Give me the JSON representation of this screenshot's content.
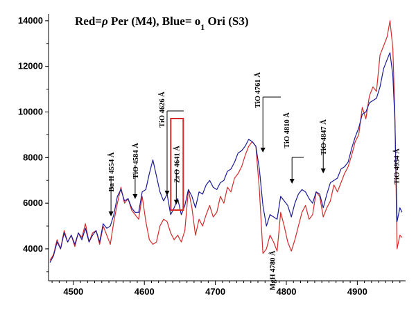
{
  "chart_data": {
    "type": "line",
    "title": {
      "part1": "Red=",
      "rho": "ρ",
      "part2": " Per (M4),  Blue= o",
      "sub": "1",
      "part3": " Ori (S3)"
    },
    "xlabel": "",
    "ylabel": "",
    "xlim": [
      4465,
      4968
    ],
    "ylim": [
      2600,
      14300
    ],
    "x_ticks": [
      4500,
      4600,
      4700,
      4800,
      4900
    ],
    "y_ticks": [
      4000,
      6000,
      8000,
      10000,
      12000,
      14000
    ],
    "grid": false,
    "colors": {
      "red": "#d42a2a",
      "blue": "#1a1a96",
      "box": "#d42a2a"
    },
    "series": [
      {
        "color": "red",
        "x": [
          4467,
          4472,
          4477,
          4482,
          4487,
          4492,
          4497,
          4502,
          4507,
          4512,
          4517,
          4522,
          4527,
          4532,
          4537,
          4542,
          4547,
          4552,
          4557,
          4562,
          4567,
          4572,
          4577,
          4582,
          4587,
          4592,
          4597,
          4602,
          4607,
          4612,
          4617,
          4622,
          4627,
          4632,
          4637,
          4642,
          4647,
          4652,
          4657,
          4662,
          4667,
          4672,
          4677,
          4682,
          4687,
          4692,
          4697,
          4702,
          4707,
          4712,
          4717,
          4722,
          4727,
          4732,
          4737,
          4742,
          4747,
          4752,
          4757,
          4762,
          4767,
          4772,
          4777,
          4782,
          4787,
          4792,
          4797,
          4802,
          4807,
          4812,
          4817,
          4822,
          4827,
          4832,
          4837,
          4842,
          4847,
          4852,
          4857,
          4862,
          4867,
          4872,
          4877,
          4882,
          4887,
          4892,
          4897,
          4902,
          4907,
          4912,
          4917,
          4922,
          4927,
          4932,
          4937,
          4942,
          4946,
          4950,
          4953,
          4956,
          4960,
          4963
        ],
        "y": [
          3500,
          3750,
          4400,
          4000,
          4800,
          4300,
          4600,
          4100,
          4700,
          4500,
          5100,
          4300,
          4700,
          4800,
          4200,
          5000,
          4600,
          4200,
          5200,
          6000,
          6700,
          6000,
          6200,
          5700,
          5500,
          5300,
          6300,
          5200,
          4400,
          4200,
          4300,
          5000,
          5300,
          5200,
          4700,
          4400,
          4600,
          4300,
          4800,
          6600,
          5800,
          4600,
          5300,
          5000,
          5500,
          5900,
          5400,
          5600,
          6300,
          6000,
          6700,
          6500,
          7100,
          7300,
          7600,
          8100,
          8500,
          8700,
          8500,
          6600,
          3800,
          4000,
          4600,
          4300,
          3900,
          5600,
          5000,
          4300,
          3900,
          4400,
          5000,
          5600,
          5900,
          5300,
          5500,
          6500,
          6300,
          5400,
          5800,
          6100,
          6800,
          6500,
          6900,
          7300,
          7600,
          8100,
          8700,
          9000,
          10200,
          9700,
          10700,
          11100,
          10900,
          12500,
          12900,
          13300,
          14000,
          12800,
          9800,
          4000,
          4600,
          4500
        ]
      },
      {
        "color": "blue",
        "x": [
          4467,
          4472,
          4477,
          4482,
          4487,
          4492,
          4497,
          4502,
          4507,
          4512,
          4517,
          4522,
          4527,
          4532,
          4537,
          4542,
          4547,
          4552,
          4557,
          4562,
          4567,
          4572,
          4577,
          4582,
          4587,
          4592,
          4597,
          4602,
          4607,
          4612,
          4617,
          4622,
          4627,
          4632,
          4637,
          4642,
          4647,
          4652,
          4657,
          4662,
          4667,
          4672,
          4677,
          4682,
          4687,
          4692,
          4697,
          4702,
          4707,
          4712,
          4717,
          4722,
          4727,
          4732,
          4737,
          4742,
          4747,
          4752,
          4757,
          4762,
          4767,
          4772,
          4777,
          4782,
          4787,
          4792,
          4797,
          4802,
          4807,
          4812,
          4817,
          4822,
          4827,
          4832,
          4837,
          4842,
          4847,
          4852,
          4857,
          4862,
          4867,
          4872,
          4877,
          4882,
          4887,
          4892,
          4897,
          4902,
          4907,
          4912,
          4917,
          4922,
          4927,
          4932,
          4937,
          4942,
          4946,
          4950,
          4953,
          4956,
          4960,
          4963
        ],
        "y": [
          3400,
          3700,
          4300,
          4000,
          4700,
          4300,
          4600,
          4200,
          4700,
          4400,
          4900,
          4300,
          4600,
          4800,
          4300,
          5100,
          4900,
          5000,
          5500,
          6300,
          6600,
          6100,
          6200,
          5800,
          5600,
          5600,
          6500,
          6600,
          7300,
          7900,
          7200,
          6500,
          6100,
          6400,
          5500,
          5800,
          6200,
          5500,
          5900,
          6600,
          6300,
          5800,
          6500,
          6400,
          6800,
          7000,
          6700,
          6600,
          6900,
          7000,
          7400,
          7500,
          7800,
          8200,
          8300,
          8500,
          8800,
          8700,
          8500,
          7500,
          5900,
          5000,
          5500,
          5400,
          5300,
          6300,
          6100,
          5900,
          5400,
          6000,
          6400,
          6600,
          6500,
          6200,
          6000,
          6500,
          6400,
          5800,
          6400,
          6900,
          7000,
          7100,
          7500,
          7600,
          7800,
          8400,
          8900,
          9300,
          9900,
          10000,
          10400,
          10500,
          10600,
          11100,
          11900,
          12300,
          12600,
          11600,
          9600,
          5200,
          5800,
          5600
        ]
      }
    ],
    "annotations": [
      {
        "label": "Ba II 4554 Å",
        "x": 4553
      },
      {
        "label": "TiO 4584 Å",
        "x": 4587
      },
      {
        "label": "TiO 4626 Å",
        "x": 4632
      },
      {
        "label": "ZrO 4641 Å",
        "x": 4645
      },
      {
        "label": "TiO 4761 Å",
        "x": 4767
      },
      {
        "label": "MgH 4780 Å",
        "x": 4780
      },
      {
        "label": "TiO 4810 Å",
        "x": 4808
      },
      {
        "label": "TiO 4847 Å",
        "x": 4852
      },
      {
        "label": "TiO 4954 Å",
        "x": 4955
      }
    ]
  }
}
